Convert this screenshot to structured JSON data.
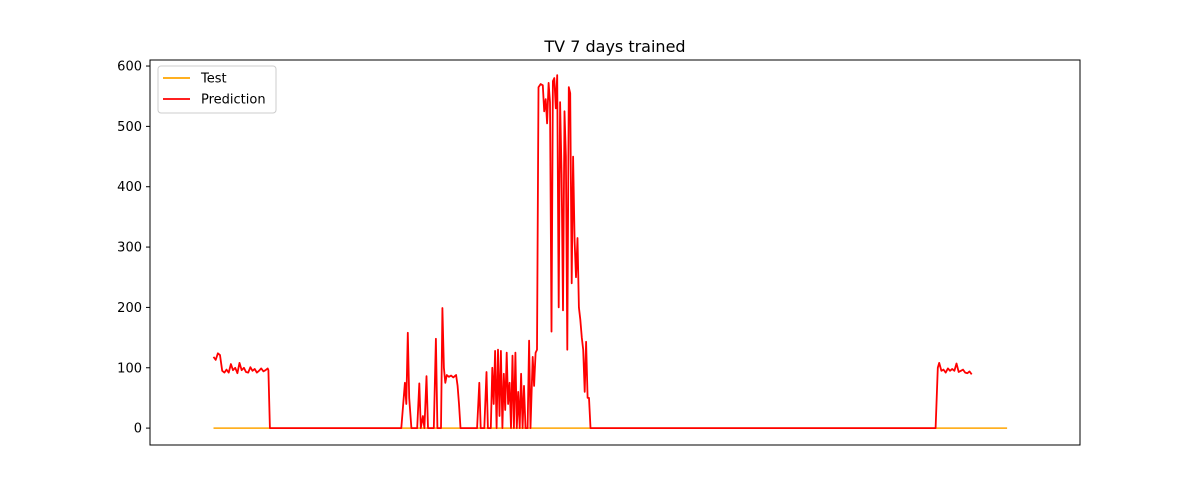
{
  "chart_data": {
    "type": "line",
    "title": "TV 7 days trained",
    "xlabel": "",
    "ylabel": "",
    "ylim": [
      -28,
      610
    ],
    "xlim": [
      -88,
      1200
    ],
    "xticks_visible": false,
    "yticks": [
      0,
      100,
      200,
      300,
      400,
      500,
      600
    ],
    "grid": false,
    "legend_position": "upper-left",
    "x_range": [
      0,
      1100
    ],
    "series": [
      {
        "name": "Test",
        "color": "#ffa500",
        "points": [
          [
            0,
            0
          ],
          [
            1099,
            0
          ]
        ]
      },
      {
        "name": "Prediction",
        "color": "#ff0000",
        "points": [
          [
            0,
            118
          ],
          [
            3,
            113
          ],
          [
            6,
            124
          ],
          [
            9,
            121
          ],
          [
            12,
            95
          ],
          [
            15,
            92
          ],
          [
            18,
            97
          ],
          [
            21,
            92
          ],
          [
            24,
            106
          ],
          [
            27,
            96
          ],
          [
            30,
            100
          ],
          [
            33,
            91
          ],
          [
            36,
            108
          ],
          [
            39,
            96
          ],
          [
            42,
            100
          ],
          [
            45,
            93
          ],
          [
            48,
            92
          ],
          [
            51,
            101
          ],
          [
            54,
            95
          ],
          [
            57,
            98
          ],
          [
            60,
            92
          ],
          [
            63,
            95
          ],
          [
            66,
            99
          ],
          [
            69,
            94
          ],
          [
            72,
            96
          ],
          [
            75,
            99
          ],
          [
            76,
            96
          ],
          [
            78,
            0
          ],
          [
            260,
            0
          ],
          [
            265,
            75
          ],
          [
            267,
            40
          ],
          [
            269,
            158
          ],
          [
            271,
            50
          ],
          [
            274,
            0
          ],
          [
            282,
            0
          ],
          [
            285,
            74
          ],
          [
            287,
            0
          ],
          [
            290,
            20
          ],
          [
            292,
            0
          ],
          [
            295,
            86
          ],
          [
            297,
            0
          ],
          [
            305,
            0
          ],
          [
            308,
            148
          ],
          [
            310,
            0
          ],
          [
            315,
            0
          ],
          [
            317,
            199
          ],
          [
            319,
            100
          ],
          [
            321,
            75
          ],
          [
            323,
            88
          ],
          [
            326,
            85
          ],
          [
            329,
            87
          ],
          [
            332,
            84
          ],
          [
            334,
            86
          ],
          [
            336,
            88
          ],
          [
            338,
            70
          ],
          [
            340,
            40
          ],
          [
            342,
            0
          ],
          [
            365,
            0
          ],
          [
            368,
            75
          ],
          [
            370,
            0
          ],
          [
            375,
            0
          ],
          [
            378,
            93
          ],
          [
            380,
            0
          ],
          [
            384,
            0
          ],
          [
            386,
            100
          ],
          [
            388,
            40
          ],
          [
            390,
            128
          ],
          [
            392,
            0
          ],
          [
            394,
            130
          ],
          [
            396,
            20
          ],
          [
            398,
            128
          ],
          [
            400,
            0
          ],
          [
            402,
            90
          ],
          [
            404,
            30
          ],
          [
            406,
            125
          ],
          [
            408,
            40
          ],
          [
            410,
            75
          ],
          [
            412,
            0
          ],
          [
            414,
            120
          ],
          [
            416,
            0
          ],
          [
            418,
            125
          ],
          [
            420,
            0
          ],
          [
            422,
            60
          ],
          [
            424,
            0
          ],
          [
            426,
            90
          ],
          [
            428,
            0
          ],
          [
            430,
            70
          ],
          [
            432,
            0
          ],
          [
            435,
            0
          ],
          [
            437,
            145
          ],
          [
            439,
            0
          ],
          [
            442,
            118
          ],
          [
            444,
            70
          ],
          [
            446,
            125
          ],
          [
            448,
            130
          ],
          [
            450,
            565
          ],
          [
            453,
            570
          ],
          [
            456,
            568
          ],
          [
            458,
            525
          ],
          [
            460,
            545
          ],
          [
            462,
            505
          ],
          [
            464,
            572
          ],
          [
            466,
            540
          ],
          [
            468,
            160
          ],
          [
            470,
            575
          ],
          [
            472,
            580
          ],
          [
            474,
            530
          ],
          [
            476,
            585
          ],
          [
            478,
            200
          ],
          [
            480,
            540
          ],
          [
            482,
            420
          ],
          [
            484,
            195
          ],
          [
            486,
            525
          ],
          [
            488,
            450
          ],
          [
            490,
            130
          ],
          [
            492,
            565
          ],
          [
            494,
            555
          ],
          [
            496,
            240
          ],
          [
            498,
            450
          ],
          [
            500,
            310
          ],
          [
            502,
            250
          ],
          [
            504,
            315
          ],
          [
            506,
            200
          ],
          [
            508,
            180
          ],
          [
            510,
            150
          ],
          [
            512,
            130
          ],
          [
            514,
            60
          ],
          [
            516,
            143
          ],
          [
            518,
            50
          ],
          [
            520,
            50
          ],
          [
            522,
            0
          ],
          [
            1000,
            0
          ],
          [
            1003,
            100
          ],
          [
            1005,
            108
          ],
          [
            1008,
            95
          ],
          [
            1011,
            97
          ],
          [
            1014,
            92
          ],
          [
            1017,
            99
          ],
          [
            1020,
            95
          ],
          [
            1023,
            98
          ],
          [
            1026,
            95
          ],
          [
            1029,
            107
          ],
          [
            1032,
            93
          ],
          [
            1035,
            95
          ],
          [
            1038,
            97
          ],
          [
            1041,
            92
          ],
          [
            1044,
            91
          ],
          [
            1047,
            94
          ],
          [
            1050,
            89
          ]
        ]
      }
    ]
  }
}
